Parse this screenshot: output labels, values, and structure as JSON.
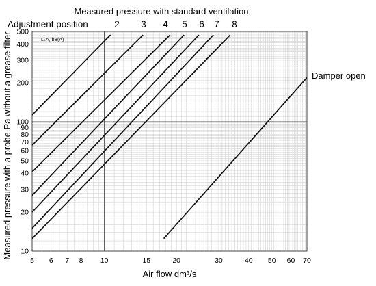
{
  "chart_data": {
    "type": "line",
    "x_scale": "log",
    "y_scale": "log",
    "title": "Measured pressure with standard ventilation",
    "adjustment_label": "Adjustment position",
    "xlabel": "Air flow dm³/s",
    "ylabel": "Measured pressure with a probe Pa without a grease filter",
    "corner_label": "LₚA, bB(A)",
    "damper_label": "Damper open",
    "xlim": [
      5,
      70
    ],
    "ylim": [
      10,
      500
    ],
    "grid": true,
    "x_ticks": [
      5,
      6,
      7,
      8,
      10,
      15,
      20,
      30,
      40,
      50,
      60,
      70
    ],
    "y_ticks": [
      10,
      20,
      30,
      40,
      50,
      60,
      70,
      80,
      90,
      100,
      200,
      300,
      400,
      500
    ],
    "series": [
      {
        "name": "2",
        "x": [
          5,
          10.6
        ],
        "y": [
          113,
          470
        ]
      },
      {
        "name": "3",
        "x": [
          5,
          14.5
        ],
        "y": [
          66,
          470
        ]
      },
      {
        "name": "4",
        "x": [
          5,
          18.8
        ],
        "y": [
          41,
          470
        ]
      },
      {
        "name": "5",
        "x": [
          5,
          21.5
        ],
        "y": [
          27,
          470
        ]
      },
      {
        "name": "6",
        "x": [
          5,
          24.8
        ],
        "y": [
          20,
          470
        ]
      },
      {
        "name": "7",
        "x": [
          5,
          28.5
        ],
        "y": [
          15,
          470
        ]
      },
      {
        "name": "8",
        "x": [
          5,
          33.5
        ],
        "y": [
          12.5,
          470
        ]
      },
      {
        "name": "Damper open",
        "x": [
          17.7,
          70
        ],
        "y": [
          12.5,
          220
        ]
      }
    ]
  }
}
